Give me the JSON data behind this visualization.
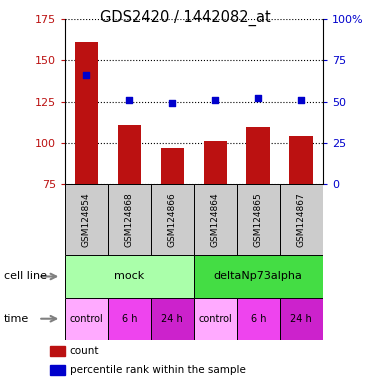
{
  "title": "GDS2420 / 1442082_at",
  "samples": [
    "GSM124854",
    "GSM124868",
    "GSM124866",
    "GSM124864",
    "GSM124865",
    "GSM124867"
  ],
  "bar_values": [
    161,
    111,
    97,
    101,
    110,
    104
  ],
  "percentile_values": [
    66,
    51,
    49,
    51,
    52,
    51
  ],
  "bar_color": "#bb1111",
  "dot_color": "#0000cc",
  "ylim_left": [
    75,
    175
  ],
  "ylim_right": [
    0,
    100
  ],
  "yticks_left": [
    75,
    100,
    125,
    150,
    175
  ],
  "yticks_right": [
    0,
    25,
    50,
    75,
    100
  ],
  "ytick_labels_right": [
    "0",
    "25",
    "50",
    "75",
    "100%"
  ],
  "cell_line_groups": [
    {
      "label": "mock",
      "start": 0,
      "end": 3,
      "color": "#aaffaa"
    },
    {
      "label": "deltaNp73alpha",
      "start": 3,
      "end": 6,
      "color": "#44dd44"
    }
  ],
  "time_labels": [
    "control",
    "6 h",
    "24 h",
    "control",
    "6 h",
    "24 h"
  ],
  "time_colors": [
    "#ffaaff",
    "#ee44ee",
    "#cc22cc",
    "#ffaaff",
    "#ee44ee",
    "#cc22cc"
  ],
  "sample_box_color": "#cccccc",
  "legend_items": [
    {
      "color": "#bb1111",
      "label": "count"
    },
    {
      "color": "#0000cc",
      "label": "percentile rank within the sample"
    }
  ],
  "xlabel_cellline": "cell line",
  "xlabel_time": "time",
  "fig_width": 3.71,
  "fig_height": 3.84,
  "dpi": 100
}
